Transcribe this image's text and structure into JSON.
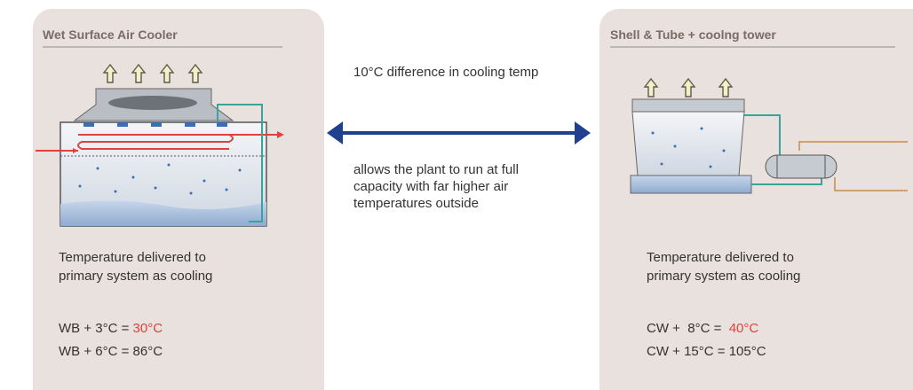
{
  "left_panel": {
    "title": "Wet Surface Air Cooler",
    "description": [
      "Temperature delivered to",
      "primary system as cooling"
    ],
    "formulas": [
      {
        "text": "WB + 3°C = ",
        "highlight": "30°C"
      },
      {
        "text": "WB + 6°C = 86°C"
      }
    ]
  },
  "center": {
    "top_text": "10°C difference in cooling temp",
    "bottom_text": [
      "allows the plant to run at full",
      "capacity with far higher air",
      "temperatures outside"
    ]
  },
  "right_panel": {
    "title": "Shell & Tube + coolng tower",
    "description": [
      "Temperature delivered to",
      "primary system as cooling"
    ],
    "formulas": [
      {
        "text": "CW +  8°C =  ",
        "highlight": "40°C"
      },
      {
        "text": "CW + 15°C = 105°C"
      }
    ]
  }
}
